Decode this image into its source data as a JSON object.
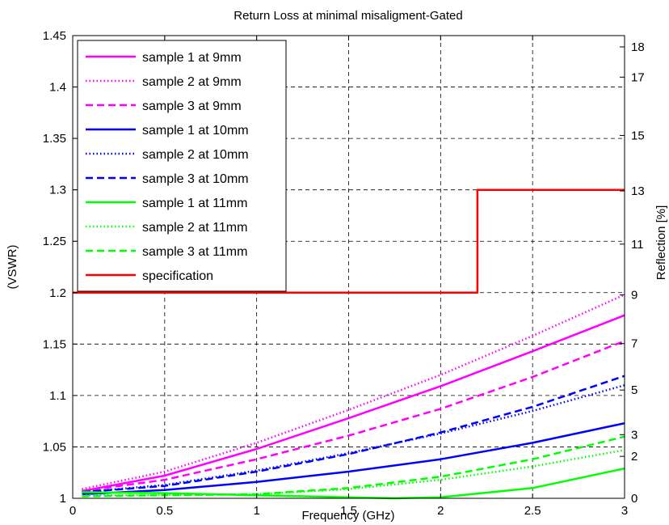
{
  "chart_data": {
    "type": "line",
    "title": "Return Loss at minimal misaligment-Gated",
    "xlabel": "Frequency (GHz)",
    "ylabel_left": "(VSWR)",
    "ylabel_right": "Reflection [%]",
    "xlim": [
      0,
      3
    ],
    "ylim": [
      1,
      1.45
    ],
    "x_ticks": [
      "0",
      "0.5",
      "1",
      "1.5",
      "2",
      "2.5",
      "3"
    ],
    "y_ticks_left": [
      "1",
      "1.05",
      "1.1",
      "1.15",
      "1.2",
      "1.25",
      "1.3",
      "1.35",
      "1.4",
      "1.45"
    ],
    "y_ticks_right": [
      {
        "label": "0",
        "vswr": 1.0
      },
      {
        "label": "2",
        "vswr": 1.0408
      },
      {
        "label": "3",
        "vswr": 1.0619
      },
      {
        "label": "5",
        "vswr": 1.1053
      },
      {
        "label": "7",
        "vswr": 1.1505
      },
      {
        "label": "9",
        "vswr": 1.1978
      },
      {
        "label": "11",
        "vswr": 1.2472
      },
      {
        "label": "13",
        "vswr": 1.2989
      },
      {
        "label": "15",
        "vswr": 1.3529
      },
      {
        "label": "17",
        "vswr": 1.4096
      },
      {
        "label": "18",
        "vswr": 1.439
      }
    ],
    "grid": true,
    "legend_position": "top-left",
    "series": [
      {
        "name": "sample 1 at 9mm",
        "color": "#ff00ff",
        "dash": "solid",
        "x": [
          0.05,
          0.5,
          1.0,
          1.5,
          2.0,
          2.5,
          3.0
        ],
        "y": [
          1.007,
          1.022,
          1.048,
          1.078,
          1.109,
          1.143,
          1.178
        ]
      },
      {
        "name": "sample 2 at 9mm",
        "color": "#ff00ff",
        "dash": "dotted",
        "x": [
          0.05,
          0.5,
          1.0,
          1.5,
          2.0,
          2.5,
          3.0
        ],
        "y": [
          1.009,
          1.026,
          1.054,
          1.086,
          1.12,
          1.158,
          1.198
        ]
      },
      {
        "name": "sample 3 at 9mm",
        "color": "#ff00ff",
        "dash": "dashed",
        "x": [
          0.05,
          0.5,
          1.0,
          1.5,
          2.0,
          2.5,
          3.0
        ],
        "y": [
          1.007,
          1.018,
          1.038,
          1.061,
          1.087,
          1.118,
          1.153
        ]
      },
      {
        "name": "sample 1 at 10mm",
        "color": "#0000ff",
        "dash": "solid",
        "x": [
          0.05,
          0.5,
          1.0,
          1.5,
          2.0,
          2.5,
          3.0
        ],
        "y": [
          1.004,
          1.008,
          1.016,
          1.026,
          1.038,
          1.054,
          1.073
        ]
      },
      {
        "name": "sample 2 at 10mm",
        "color": "#0000ff",
        "dash": "dotted",
        "x": [
          0.05,
          0.5,
          1.0,
          1.5,
          2.0,
          2.5,
          3.0
        ],
        "y": [
          1.006,
          1.013,
          1.027,
          1.044,
          1.063,
          1.085,
          1.11
        ]
      },
      {
        "name": "sample 3 at 10mm",
        "color": "#0000ff",
        "dash": "dashed",
        "x": [
          0.05,
          0.5,
          1.0,
          1.5,
          2.0,
          2.5,
          3.0
        ],
        "y": [
          1.006,
          1.012,
          1.026,
          1.043,
          1.064,
          1.089,
          1.119
        ]
      },
      {
        "name": "sample 1 at 11mm",
        "color": "#00ff00",
        "dash": "solid",
        "x": [
          0.05,
          0.5,
          1.0,
          1.5,
          1.75,
          2.0,
          2.5,
          3.0
        ],
        "y": [
          1.006,
          1.005,
          1.003,
          1.001,
          1.0,
          1.001,
          1.01,
          1.029
        ]
      },
      {
        "name": "sample 2 at 11mm",
        "color": "#00ff00",
        "dash": "dotted",
        "x": [
          0.05,
          0.5,
          1.0,
          1.5,
          2.0,
          2.5,
          3.0
        ],
        "y": [
          1.003,
          1.003,
          1.004,
          1.009,
          1.018,
          1.031,
          1.047
        ]
      },
      {
        "name": "sample 3 at 11mm",
        "color": "#00ff00",
        "dash": "dashed",
        "x": [
          0.05,
          0.5,
          1.0,
          1.5,
          2.0,
          2.5,
          3.0
        ],
        "y": [
          1.002,
          1.003,
          1.004,
          1.01,
          1.021,
          1.038,
          1.06
        ]
      },
      {
        "name": "specification",
        "color": "#ff0000",
        "dash": "solid",
        "x": [
          0,
          2.2,
          2.2,
          3.0
        ],
        "y": [
          1.2,
          1.2,
          1.3,
          1.3
        ]
      }
    ]
  }
}
